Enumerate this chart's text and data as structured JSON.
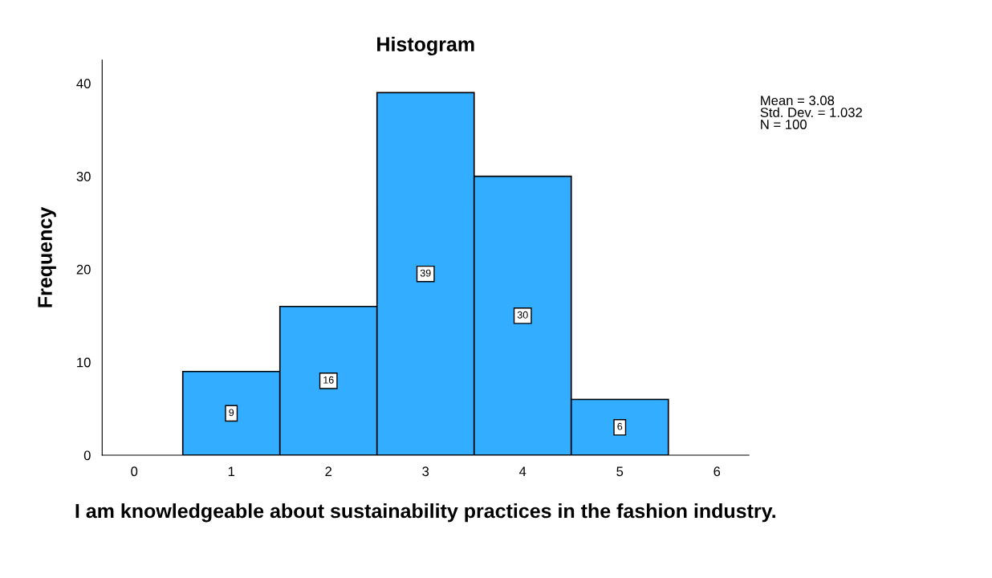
{
  "chart_data": {
    "type": "histogram",
    "title": "Histogram",
    "xlabel": "I am knowledgeable about sustainability practices in the fashion industry.",
    "ylabel": "Frequency",
    "bins": [
      0.5,
      1.5,
      2.5,
      3.5,
      4.5,
      5.5
    ],
    "values": [
      9,
      16,
      39,
      30,
      6
    ],
    "color": "#33adff",
    "data_labels": true,
    "xlim": [
      -0.33,
      6.33
    ],
    "xticks": [
      0,
      1,
      2,
      3,
      4,
      5,
      6
    ],
    "ylim": [
      0,
      42.5
    ],
    "yticks": [
      0,
      10,
      20,
      30,
      40
    ],
    "grid": false,
    "annotations": [
      "Mean = 3.08\nStd. Dev. = 1.032\nN = 100"
    ]
  }
}
